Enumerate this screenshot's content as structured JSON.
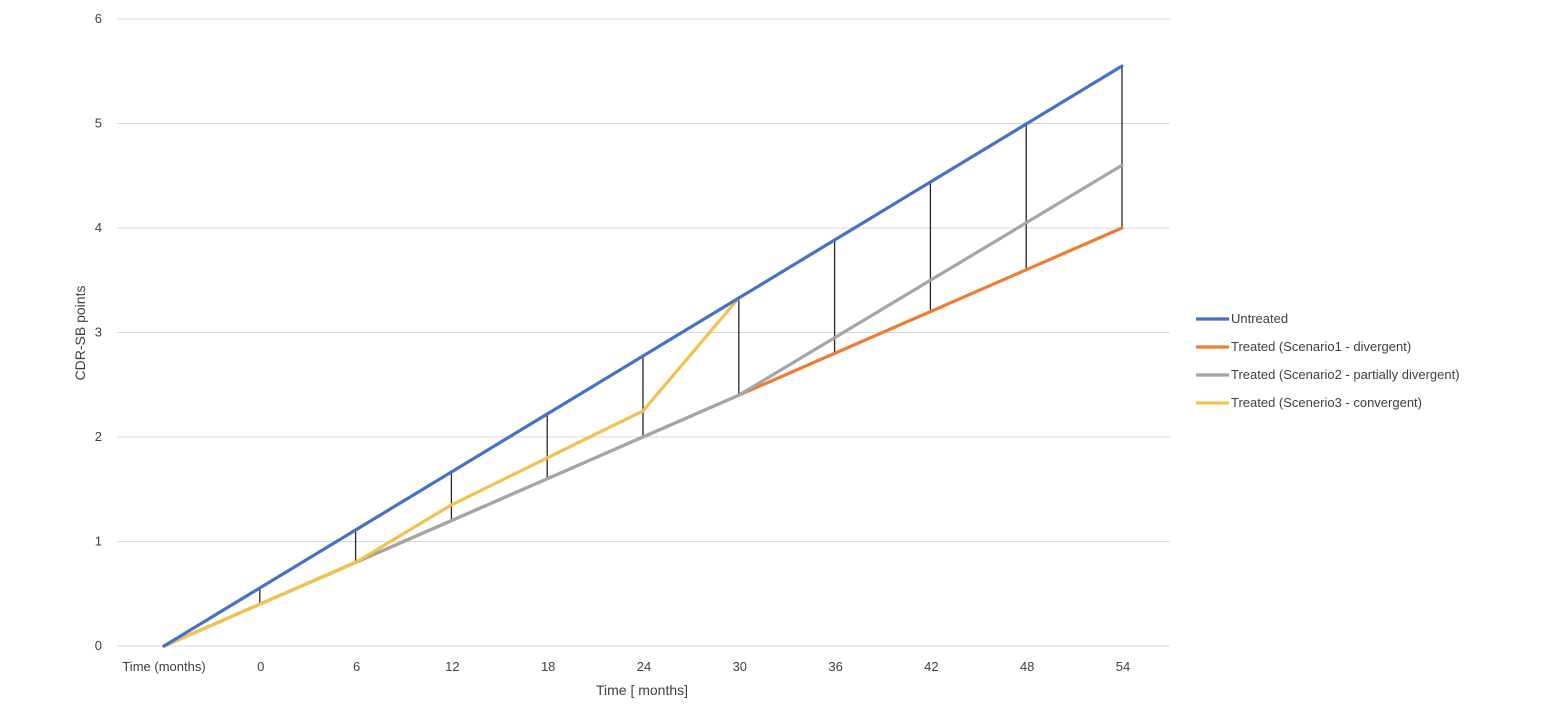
{
  "chart_data": {
    "type": "line",
    "title": "",
    "xlabel": "Time [ months]",
    "ylabel": "CDR-SB points",
    "categories": [
      "Time (months)",
      "0",
      "6",
      "12",
      "18",
      "24",
      "30",
      "36",
      "42",
      "48",
      "54"
    ],
    "yticks": [
      "0",
      "1",
      "2",
      "3",
      "4",
      "5",
      "6"
    ],
    "ylim": [
      0,
      6
    ],
    "grid": true,
    "legend_position": "right",
    "series": [
      {
        "name": "Untreated",
        "color": "#4472c4",
        "values": [
          0,
          0.555,
          1.11,
          1.665,
          2.22,
          2.775,
          3.33,
          3.885,
          4.44,
          4.995,
          5.55
        ]
      },
      {
        "name": "Treated (Scenario1 - divergent)",
        "color": "#ed7d31",
        "values": [
          0,
          0.4,
          0.8,
          1.2,
          1.6,
          2.0,
          2.4,
          2.8,
          3.2,
          3.6,
          4.0
        ]
      },
      {
        "name": "Treated (Scenario2 - partially divergent)",
        "color": "#a5a5a5",
        "values": [
          0,
          0.4,
          0.8,
          1.2,
          1.6,
          2.0,
          2.4,
          2.95,
          3.5,
          4.05,
          4.6
        ]
      },
      {
        "name": "Treated (Scenerio3 - convergent)",
        "color": "#f2c14e",
        "values": [
          0,
          0.4,
          0.8,
          1.35,
          1.8,
          2.25,
          3.33,
          null,
          null,
          null,
          null
        ]
      }
    ],
    "difference_bars": [
      {
        "category": "0",
        "from": 0.4,
        "to": 0.555
      },
      {
        "category": "6",
        "from": 0.8,
        "to": 1.11
      },
      {
        "category": "12",
        "from": 1.2,
        "to": 1.665
      },
      {
        "category": "18",
        "from": 1.6,
        "to": 2.22
      },
      {
        "category": "24",
        "from": 2.0,
        "to": 2.775
      },
      {
        "category": "30",
        "from": 2.4,
        "to": 3.33
      },
      {
        "category": "36",
        "from": 2.8,
        "to": 3.885
      },
      {
        "category": "42",
        "from": 3.2,
        "to": 4.44
      },
      {
        "category": "48",
        "from": 3.6,
        "to": 4.995
      },
      {
        "category": "54",
        "from": 4.0,
        "to": 5.55
      }
    ],
    "difference_bar_color": "#262626"
  }
}
